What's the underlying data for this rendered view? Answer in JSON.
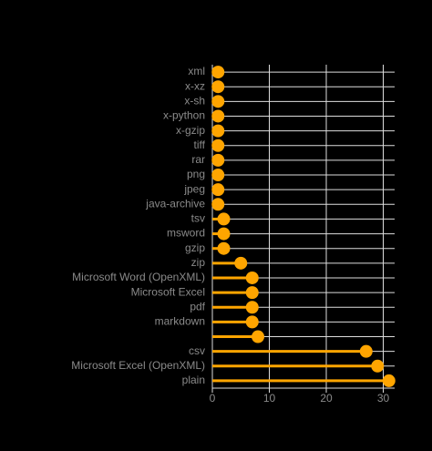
{
  "chart_data": {
    "type": "lollipop",
    "categories": [
      "xml",
      "x-xz",
      "x-sh",
      "x-python",
      "x-gzip",
      "tiff",
      "rar",
      "png",
      "jpeg",
      "java-archive",
      "tsv",
      "msword",
      "gzip",
      "zip",
      "Microsoft Word (OpenXML)",
      "Microsoft Excel",
      "pdf",
      "markdown",
      null,
      "csv",
      "Microsoft Excel (OpenXML)",
      "plain"
    ],
    "values": [
      1,
      1,
      1,
      1,
      1,
      1,
      1,
      1,
      1,
      1,
      2,
      2,
      2,
      5,
      7,
      7,
      7,
      7,
      8,
      27,
      29,
      31
    ],
    "color": "#ffa500",
    "xlim": [
      0,
      32
    ],
    "xticks": [
      0,
      10,
      20,
      30
    ],
    "grid": true
  }
}
